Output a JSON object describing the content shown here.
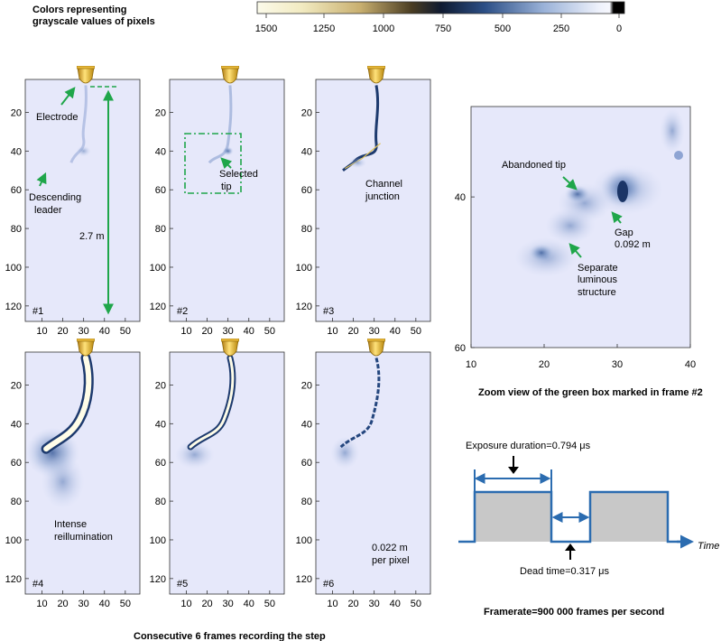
{
  "colorbar": {
    "title_line1": "Colors representing",
    "title_line2": "grayscale values of pixels",
    "ticks": [
      "1500",
      "1250",
      "1000",
      "750",
      "500",
      "250",
      "0"
    ],
    "colors": [
      "#fbfaea",
      "#eee4b0",
      "#bda55a",
      "#3d3420",
      "#0d1a33",
      "#2a4e83",
      "#95aed4",
      "#e6ebf8",
      "#000000"
    ]
  },
  "frames": {
    "y_ticks": [
      "20",
      "40",
      "60",
      "80",
      "100",
      "120"
    ],
    "x_ticks": [
      "10",
      "20",
      "30",
      "40",
      "50"
    ],
    "labels": [
      "#1",
      "#2",
      "#3",
      "#4",
      "#5",
      "#6"
    ],
    "caption": "Consecutive 6 frames recording the step"
  },
  "annotations": {
    "electrode": "Electrode",
    "descending_line1": "Descending",
    "descending_line2": "leader",
    "length": "2.7 m",
    "selected_line1": "Selected",
    "selected_line2": "tip",
    "channel_line1": "Channel",
    "channel_line2": "junction",
    "intense_line1": "Intense",
    "intense_line2": "reillumination",
    "pixel_line1": "0.022 m",
    "pixel_line2": "per pixel"
  },
  "zoom": {
    "y_ticks": [
      "40",
      "60"
    ],
    "x_ticks": [
      "10",
      "20",
      "30",
      "40"
    ],
    "abandoned": "Abandoned tip",
    "gap_line1": "Gap",
    "gap_line2": "0.092 m",
    "separate_line1": "Separate",
    "separate_line2": "luminous",
    "separate_line3": "structure",
    "caption": "Zoom view of the green box marked in frame #2"
  },
  "timing": {
    "exposure": "Exposure duration=0.794 μs",
    "dead": "Dead time=0.317 μs",
    "time_label": "Time",
    "framerate": "Framerate=900 000 frames per second"
  },
  "colors": {
    "panel_bg": "#e6e8fa",
    "annotation_green": "#1fa64a",
    "timing_blue": "#2b6cb0",
    "bar_fill": "#c8c8c8",
    "electrode_gold": "#d9a520"
  }
}
